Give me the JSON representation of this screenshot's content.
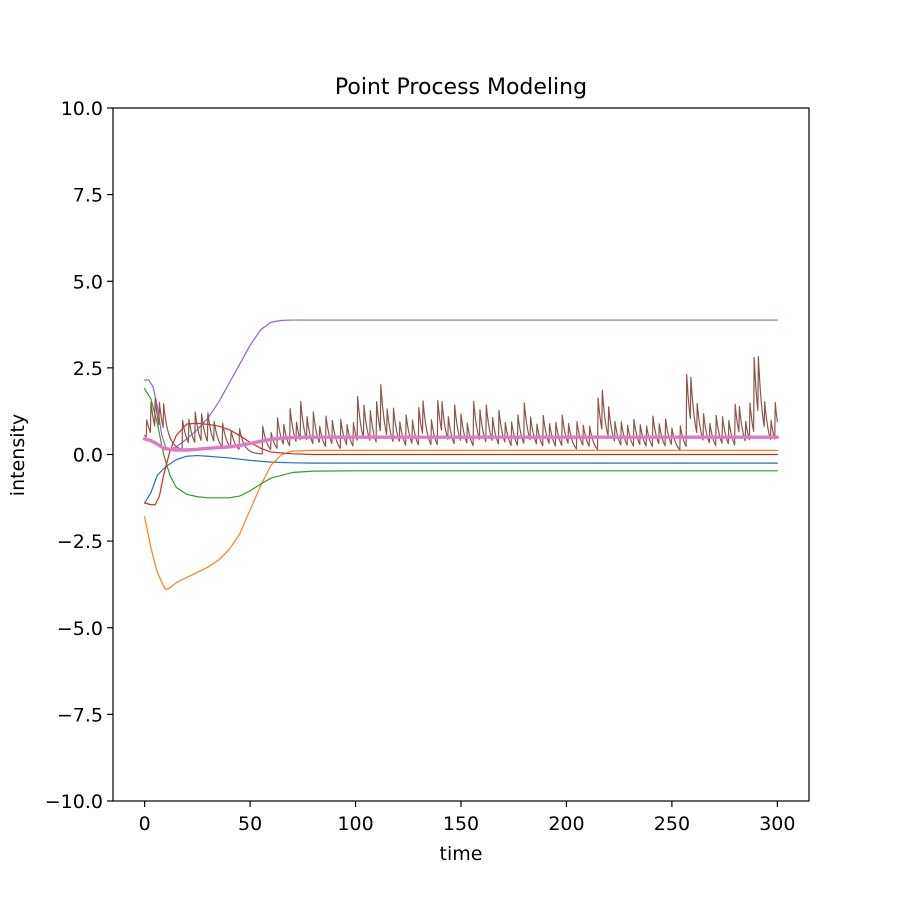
{
  "chart_data": {
    "type": "line",
    "title": "Point Process Modeling",
    "xlabel": "time",
    "ylabel": "intensity",
    "xlim": [
      -15,
      315
    ],
    "ylim": [
      -10,
      10
    ],
    "xticks": [
      0,
      50,
      100,
      150,
      200,
      250,
      300
    ],
    "yticks": [
      -10,
      -7.5,
      -5,
      -2.5,
      0,
      2.5,
      5,
      7.5,
      10
    ],
    "xtick_labels": [
      "0",
      "50",
      "100",
      "150",
      "200",
      "250",
      "300"
    ],
    "ytick_labels": [
      "−10.0",
      "−7.5",
      "−5.0",
      "−2.5",
      "0.0",
      "2.5",
      "5.0",
      "7.5",
      "10.0"
    ],
    "legend": "none",
    "grid": false,
    "series": [
      {
        "color": "#1f77b4",
        "width": 1.2,
        "x": [
          0,
          3,
          6,
          10,
          15,
          20,
          25,
          30,
          40,
          50,
          60,
          70,
          80,
          100,
          150,
          200,
          250,
          300
        ],
        "y": [
          -1.4,
          -1.1,
          -0.6,
          -0.35,
          -0.15,
          -0.05,
          -0.03,
          -0.05,
          -0.1,
          -0.17,
          -0.22,
          -0.24,
          -0.25,
          -0.25,
          -0.25,
          -0.25,
          -0.25,
          -0.25
        ]
      },
      {
        "color": "#ff7f0e",
        "width": 1.2,
        "x": [
          0,
          3,
          6,
          9,
          10,
          12,
          15,
          20,
          25,
          30,
          35,
          40,
          45,
          50,
          55,
          60,
          65,
          70,
          80,
          100,
          150,
          200,
          250,
          300
        ],
        "y": [
          -1.8,
          -2.7,
          -3.4,
          -3.8,
          -3.9,
          -3.85,
          -3.7,
          -3.55,
          -3.4,
          -3.25,
          -3.05,
          -2.75,
          -2.3,
          -1.6,
          -0.9,
          -0.3,
          0.0,
          0.1,
          0.12,
          0.12,
          0.12,
          0.12,
          0.12,
          0.12
        ]
      },
      {
        "color": "#2ca02c",
        "width": 1.2,
        "x": [
          0,
          3,
          6,
          9,
          12,
          15,
          20,
          25,
          30,
          40,
          45,
          50,
          55,
          60,
          70,
          80,
          100,
          150,
          200,
          250,
          300
        ],
        "y": [
          1.9,
          1.6,
          0.9,
          0.0,
          -0.6,
          -0.95,
          -1.15,
          -1.22,
          -1.25,
          -1.25,
          -1.2,
          -1.05,
          -0.85,
          -0.68,
          -0.52,
          -0.48,
          -0.47,
          -0.47,
          -0.47,
          -0.47,
          -0.47
        ]
      },
      {
        "color": "#d62728",
        "width": 1.2,
        "x": [
          0,
          3,
          5,
          7,
          9,
          12,
          15,
          20,
          25,
          30,
          35,
          40,
          45,
          50,
          55,
          60,
          70,
          80,
          100,
          150,
          200,
          250,
          300
        ],
        "y": [
          -1.4,
          -1.45,
          -1.45,
          -1.2,
          -0.6,
          0.1,
          0.55,
          0.88,
          0.9,
          0.87,
          0.82,
          0.72,
          0.55,
          0.35,
          0.18,
          0.07,
          0.02,
          0.0,
          0.0,
          0.0,
          0.0,
          0.0,
          0.0
        ]
      },
      {
        "color": "#9467bd",
        "width": 1.2,
        "x": [
          0,
          2,
          4,
          6,
          8,
          10,
          12,
          15,
          20,
          25,
          30,
          35,
          40,
          45,
          50,
          55,
          60,
          65,
          70,
          80,
          100,
          150,
          200,
          250,
          300
        ],
        "y": [
          2.15,
          2.15,
          1.95,
          1.4,
          0.6,
          0.2,
          0.15,
          0.22,
          0.45,
          0.72,
          1.05,
          1.5,
          2.05,
          2.6,
          3.15,
          3.6,
          3.82,
          3.87,
          3.88,
          3.88,
          3.88,
          3.88,
          3.88,
          3.88,
          3.88
        ]
      },
      {
        "color": "#8c564b",
        "width": 1.2,
        "kind": "spikes",
        "decay": 2.2,
        "baseline": [
          [
            0,
            0.55
          ],
          [
            4,
            0.35
          ],
          [
            10,
            0.2
          ],
          [
            20,
            0.1
          ],
          [
            40,
            0.05
          ],
          [
            60,
            0.0
          ],
          [
            300,
            0.0
          ]
        ],
        "events": [
          [
            1,
            0.5
          ],
          [
            3,
            0.9
          ],
          [
            5,
            0.85
          ],
          [
            7,
            0.7
          ],
          [
            9,
            0.75
          ],
          [
            18,
            0.85
          ],
          [
            21,
            0.7
          ],
          [
            24,
            0.9
          ],
          [
            27,
            0.8
          ],
          [
            30,
            0.85
          ],
          [
            33,
            0.6
          ],
          [
            37,
            0.7
          ],
          [
            41,
            0.5
          ],
          [
            45,
            0.6
          ],
          [
            56,
            0.8
          ],
          [
            60,
            0.5
          ],
          [
            63,
            0.9
          ],
          [
            66,
            0.6
          ],
          [
            69,
            1.1
          ],
          [
            72,
            0.6
          ],
          [
            74,
            1.15
          ],
          [
            77,
            0.7
          ],
          [
            80,
            0.95
          ],
          [
            83,
            0.5
          ],
          [
            86,
            0.9
          ],
          [
            89,
            0.7
          ],
          [
            93,
            0.85
          ],
          [
            96,
            0.6
          ],
          [
            99,
            0.7
          ],
          [
            101,
            1.3
          ],
          [
            104,
            1.0
          ],
          [
            107,
            0.9
          ],
          [
            110,
            1.2
          ],
          [
            112,
            1.4
          ],
          [
            115,
            0.8
          ],
          [
            118,
            1.0
          ],
          [
            121,
            0.6
          ],
          [
            124,
            0.9
          ],
          [
            127,
            0.7
          ],
          [
            130,
            1.1
          ],
          [
            132,
            1.0
          ],
          [
            136,
            0.75
          ],
          [
            139,
            1.3
          ],
          [
            141,
            0.9
          ],
          [
            144,
            0.7
          ],
          [
            147,
            1.15
          ],
          [
            150,
            0.8
          ],
          [
            153,
            0.6
          ],
          [
            156,
            1.3
          ],
          [
            159,
            0.9
          ],
          [
            162,
            1.1
          ],
          [
            165,
            0.7
          ],
          [
            168,
            1.0
          ],
          [
            171,
            0.6
          ],
          [
            174,
            0.7
          ],
          [
            177,
            0.9
          ],
          [
            180,
            1.2
          ],
          [
            183,
            0.7
          ],
          [
            186,
            0.6
          ],
          [
            189,
            0.9
          ],
          [
            192,
            0.6
          ],
          [
            195,
            0.7
          ],
          [
            198,
            0.9
          ],
          [
            201,
            0.6
          ],
          [
            205,
            0.8
          ],
          [
            208,
            0.6
          ],
          [
            211,
            0.6
          ],
          [
            215,
            1.5
          ],
          [
            217,
            1.2
          ],
          [
            220,
            0.9
          ],
          [
            223,
            0.6
          ],
          [
            226,
            0.7
          ],
          [
            229,
            0.6
          ],
          [
            232,
            0.8
          ],
          [
            235,
            0.6
          ],
          [
            238,
            0.6
          ],
          [
            241,
            0.9
          ],
          [
            244,
            0.6
          ],
          [
            247,
            0.8
          ],
          [
            250,
            0.5
          ],
          [
            254,
            0.7
          ],
          [
            257,
            2.1
          ],
          [
            259,
            1.3
          ],
          [
            262,
            0.9
          ],
          [
            265,
            0.8
          ],
          [
            268,
            0.6
          ],
          [
            271,
            0.9
          ],
          [
            274,
            0.8
          ],
          [
            277,
            0.7
          ],
          [
            280,
            1.2
          ],
          [
            282,
            0.8
          ],
          [
            285,
            0.6
          ],
          [
            287,
            1.1
          ],
          [
            289,
            2.2
          ],
          [
            291,
            1.7
          ],
          [
            294,
            0.8
          ],
          [
            297,
            0.6
          ],
          [
            299,
            1.1
          ]
        ]
      },
      {
        "color": "#e377c2",
        "width": 3.4,
        "x": [
          0,
          3,
          6,
          9,
          12,
          15,
          20,
          25,
          30,
          35,
          40,
          45,
          50,
          55,
          60,
          65,
          70,
          80,
          100,
          150,
          200,
          250,
          300
        ],
        "y": [
          0.45,
          0.4,
          0.3,
          0.18,
          0.15,
          0.13,
          0.13,
          0.15,
          0.18,
          0.2,
          0.22,
          0.26,
          0.32,
          0.38,
          0.44,
          0.47,
          0.49,
          0.5,
          0.5,
          0.5,
          0.5,
          0.5,
          0.5
        ]
      }
    ]
  }
}
